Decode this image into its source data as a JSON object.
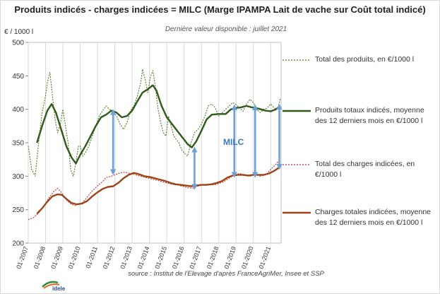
{
  "chart_data": {
    "type": "line",
    "title": "Produits indicés - charges indicées = MILC (Marge IPAMPA Lait de vache sur Coût total indicé)",
    "subtitle": "Dernière valeur disponible : juillet 2021",
    "ylabel": "€ / 1000 l",
    "ylim": [
      200,
      500
    ],
    "yticks": [
      200,
      250,
      300,
      350,
      400,
      450,
      500
    ],
    "xlim": [
      2007.0,
      2021.6
    ],
    "xticks": [
      "01-2007",
      "01-2008",
      "01-2009",
      "01-2010",
      "01-2011",
      "01-2012",
      "01-2013",
      "01-2014",
      "01-2015",
      "01-2016",
      "01-2017",
      "01-2018",
      "01-2019",
      "01-2020",
      "01-2021"
    ],
    "annotation": "MILC",
    "source": "source : Institut de l'Elevage d'après FranceAgriMer, Insee et SSP",
    "grid": "vertical",
    "series": [
      {
        "name": "Total des produits, en €/1000 l",
        "style": "dotted",
        "color": "#4e7d2b",
        "points": [
          [
            2007.0,
            345
          ],
          [
            2007.2,
            310
          ],
          [
            2007.4,
            300
          ],
          [
            2007.6,
            350
          ],
          [
            2007.8,
            395
          ],
          [
            2008.0,
            420
          ],
          [
            2008.1,
            440
          ],
          [
            2008.25,
            455
          ],
          [
            2008.4,
            420
          ],
          [
            2008.55,
            385
          ],
          [
            2008.7,
            365
          ],
          [
            2008.85,
            378
          ],
          [
            2009.0,
            400
          ],
          [
            2009.15,
            375
          ],
          [
            2009.3,
            350
          ],
          [
            2009.45,
            310
          ],
          [
            2009.6,
            300
          ],
          [
            2009.75,
            320
          ],
          [
            2009.9,
            345
          ],
          [
            2010.0,
            345
          ],
          [
            2010.15,
            330
          ],
          [
            2010.3,
            335
          ],
          [
            2010.5,
            345
          ],
          [
            2010.7,
            360
          ],
          [
            2010.9,
            375
          ],
          [
            2011.1,
            390
          ],
          [
            2011.3,
            398
          ],
          [
            2011.5,
            405
          ],
          [
            2011.7,
            400
          ],
          [
            2011.9,
            395
          ],
          [
            2012.1,
            390
          ],
          [
            2012.3,
            378
          ],
          [
            2012.5,
            370
          ],
          [
            2012.7,
            380
          ],
          [
            2012.9,
            398
          ],
          [
            2013.1,
            405
          ],
          [
            2013.3,
            420
          ],
          [
            2013.5,
            440
          ],
          [
            2013.6,
            460
          ],
          [
            2013.75,
            445
          ],
          [
            2013.9,
            425
          ],
          [
            2014.05,
            448
          ],
          [
            2014.2,
            458
          ],
          [
            2014.35,
            432
          ],
          [
            2014.5,
            400
          ],
          [
            2014.65,
            380
          ],
          [
            2014.8,
            365
          ],
          [
            2014.95,
            360
          ],
          [
            2015.1,
            390
          ],
          [
            2015.25,
            375
          ],
          [
            2015.4,
            360
          ],
          [
            2015.55,
            355
          ],
          [
            2015.7,
            350
          ],
          [
            2015.85,
            340
          ],
          [
            2016.0,
            335
          ],
          [
            2016.2,
            330
          ],
          [
            2016.4,
            350
          ],
          [
            2016.6,
            365
          ],
          [
            2016.8,
            370
          ],
          [
            2017.0,
            378
          ],
          [
            2017.2,
            390
          ],
          [
            2017.4,
            405
          ],
          [
            2017.6,
            408
          ],
          [
            2017.8,
            402
          ],
          [
            2018.0,
            390
          ],
          [
            2018.2,
            395
          ],
          [
            2018.4,
            400
          ],
          [
            2018.6,
            405
          ],
          [
            2018.8,
            410
          ],
          [
            2019.0,
            407
          ],
          [
            2019.2,
            402
          ],
          [
            2019.4,
            397
          ],
          [
            2019.6,
            408
          ],
          [
            2019.8,
            415
          ],
          [
            2020.0,
            410
          ],
          [
            2020.2,
            400
          ],
          [
            2020.4,
            395
          ],
          [
            2020.6,
            400
          ],
          [
            2020.8,
            402
          ],
          [
            2021.0,
            408
          ],
          [
            2021.2,
            402
          ],
          [
            2021.4,
            400
          ],
          [
            2021.55,
            416
          ]
        ]
      },
      {
        "name": "Produits totaux indicés, moyenne des 12 derniers mois en €/1000 l",
        "style": "solid",
        "color": "#2f5a1a",
        "points": [
          [
            2007.5,
            350
          ],
          [
            2007.8,
            375
          ],
          [
            2008.1,
            398
          ],
          [
            2008.35,
            408
          ],
          [
            2008.6,
            395
          ],
          [
            2008.9,
            370
          ],
          [
            2009.2,
            345
          ],
          [
            2009.5,
            328
          ],
          [
            2009.75,
            319
          ],
          [
            2010.0,
            332
          ],
          [
            2010.3,
            345
          ],
          [
            2010.6,
            360
          ],
          [
            2010.9,
            375
          ],
          [
            2011.2,
            388
          ],
          [
            2011.5,
            392
          ],
          [
            2011.8,
            398
          ],
          [
            2012.1,
            395
          ],
          [
            2012.4,
            388
          ],
          [
            2012.7,
            390
          ],
          [
            2013.0,
            398
          ],
          [
            2013.3,
            412
          ],
          [
            2013.6,
            425
          ],
          [
            2013.9,
            430
          ],
          [
            2014.2,
            436
          ],
          [
            2014.4,
            428
          ],
          [
            2014.7,
            405
          ],
          [
            2015.0,
            388
          ],
          [
            2015.3,
            378
          ],
          [
            2015.6,
            368
          ],
          [
            2015.9,
            358
          ],
          [
            2016.2,
            348
          ],
          [
            2016.45,
            343
          ],
          [
            2016.7,
            352
          ],
          [
            2017.0,
            368
          ],
          [
            2017.3,
            385
          ],
          [
            2017.6,
            392
          ],
          [
            2018.0,
            393
          ],
          [
            2018.4,
            393
          ],
          [
            2018.7,
            400
          ],
          [
            2019.0,
            402
          ],
          [
            2019.3,
            403
          ],
          [
            2019.6,
            405
          ],
          [
            2019.9,
            403
          ],
          [
            2020.3,
            401
          ],
          [
            2020.7,
            398
          ],
          [
            2021.0,
            397
          ],
          [
            2021.3,
            400
          ],
          [
            2021.55,
            405
          ]
        ]
      },
      {
        "name": "Total des charges indicées, en €/1000 l",
        "style": "dotted",
        "color": "#c0302a",
        "points": [
          [
            2007.0,
            235
          ],
          [
            2007.3,
            238
          ],
          [
            2007.6,
            245
          ],
          [
            2007.9,
            255
          ],
          [
            2008.2,
            268
          ],
          [
            2008.5,
            278
          ],
          [
            2008.7,
            282
          ],
          [
            2008.9,
            276
          ],
          [
            2009.1,
            268
          ],
          [
            2009.3,
            262
          ],
          [
            2009.5,
            258
          ],
          [
            2009.7,
            256
          ],
          [
            2009.9,
            258
          ],
          [
            2010.1,
            260
          ],
          [
            2010.3,
            265
          ],
          [
            2010.5,
            272
          ],
          [
            2010.7,
            278
          ],
          [
            2010.9,
            283
          ],
          [
            2011.1,
            288
          ],
          [
            2011.3,
            292
          ],
          [
            2011.5,
            298
          ],
          [
            2011.8,
            300
          ],
          [
            2012.0,
            302
          ],
          [
            2012.3,
            305
          ],
          [
            2012.6,
            306
          ],
          [
            2012.9,
            304
          ],
          [
            2013.2,
            302
          ],
          [
            2013.5,
            300
          ],
          [
            2013.8,
            298
          ],
          [
            2014.1,
            296
          ],
          [
            2014.4,
            294
          ],
          [
            2014.7,
            292
          ],
          [
            2015.0,
            290
          ],
          [
            2015.3,
            288
          ],
          [
            2015.6,
            287
          ],
          [
            2015.9,
            285
          ],
          [
            2016.2,
            283
          ],
          [
            2016.5,
            282
          ],
          [
            2016.8,
            285
          ],
          [
            2017.1,
            287
          ],
          [
            2017.4,
            288
          ],
          [
            2017.7,
            287
          ],
          [
            2018.0,
            289
          ],
          [
            2018.3,
            292
          ],
          [
            2018.6,
            297
          ],
          [
            2018.9,
            302
          ],
          [
            2019.2,
            304
          ],
          [
            2019.5,
            302
          ],
          [
            2019.8,
            300
          ],
          [
            2020.1,
            303
          ],
          [
            2020.4,
            300
          ],
          [
            2020.7,
            302
          ],
          [
            2021.0,
            310
          ],
          [
            2021.3,
            318
          ],
          [
            2021.55,
            325
          ]
        ]
      },
      {
        "name": "Charges totales indicées, moyenne des 12 derniers mois en €/1000 l",
        "style": "solid",
        "color": "#9c4418",
        "points": [
          [
            2007.5,
            244
          ],
          [
            2007.8,
            252
          ],
          [
            2008.1,
            262
          ],
          [
            2008.4,
            270
          ],
          [
            2008.7,
            273
          ],
          [
            2008.95,
            272
          ],
          [
            2009.2,
            266
          ],
          [
            2009.5,
            260
          ],
          [
            2009.8,
            258
          ],
          [
            2010.1,
            259
          ],
          [
            2010.4,
            263
          ],
          [
            2010.7,
            270
          ],
          [
            2011.0,
            276
          ],
          [
            2011.3,
            281
          ],
          [
            2011.6,
            284
          ],
          [
            2011.9,
            285
          ],
          [
            2012.2,
            290
          ],
          [
            2012.5,
            297
          ],
          [
            2012.8,
            302
          ],
          [
            2013.1,
            305
          ],
          [
            2013.4,
            303
          ],
          [
            2013.7,
            300
          ],
          [
            2014.0,
            299
          ],
          [
            2014.3,
            297
          ],
          [
            2014.6,
            295
          ],
          [
            2014.9,
            293
          ],
          [
            2015.2,
            290
          ],
          [
            2015.5,
            288
          ],
          [
            2015.8,
            287
          ],
          [
            2016.1,
            286
          ],
          [
            2016.4,
            285
          ],
          [
            2016.7,
            286
          ],
          [
            2017.0,
            287
          ],
          [
            2017.3,
            287
          ],
          [
            2017.6,
            288
          ],
          [
            2017.9,
            290
          ],
          [
            2018.2,
            293
          ],
          [
            2018.5,
            298
          ],
          [
            2018.8,
            301
          ],
          [
            2019.1,
            302
          ],
          [
            2019.4,
            302
          ],
          [
            2019.7,
            301
          ],
          [
            2020.0,
            302
          ],
          [
            2020.3,
            302
          ],
          [
            2020.6,
            302
          ],
          [
            2020.9,
            304
          ],
          [
            2021.2,
            308
          ],
          [
            2021.55,
            314
          ]
        ]
      }
    ],
    "arrows": [
      {
        "x": 2011.9,
        "from": 306,
        "to": 396
      },
      {
        "x": 2016.6,
        "from": 284,
        "to": 340
      },
      {
        "x": 2018.9,
        "from": 302,
        "to": 403
      },
      {
        "x": 2020.1,
        "from": 302,
        "to": 403
      },
      {
        "x": 2021.5,
        "from": 314,
        "to": 404
      }
    ]
  },
  "legend": {
    "produits": "Total des produits, en €/1000 l",
    "produits_moyenne": "Produits totaux indicés, moyenne des 12 derniers mois en €/1000 l",
    "charges": "Total des charges indicées, en €/1000 l",
    "charges_moyenne": "Charges totales indicées, moyenne des 12 derniers mois en €/1000 l"
  },
  "logo": {
    "text": "idele"
  }
}
